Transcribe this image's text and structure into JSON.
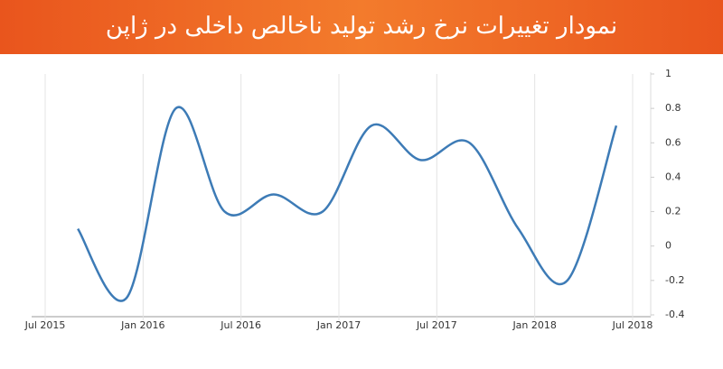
{
  "chart_data": {
    "type": "line",
    "title": "نمودار تغییرات نرخ رشد تولید ناخالص داخلی در ژاپن",
    "x": [
      "2015-09",
      "2015-12",
      "2016-03",
      "2016-06",
      "2016-09",
      "2016-12",
      "2017-03",
      "2017-06",
      "2017-09",
      "2017-12",
      "2018-03",
      "2018-06"
    ],
    "values": [
      0.1,
      -0.3,
      0.8,
      0.2,
      0.3,
      0.2,
      0.7,
      0.5,
      0.6,
      0.1,
      -0.2,
      0.7
    ],
    "color": "#3d7bb6",
    "xlim": [
      "2015-07",
      "2018-07"
    ],
    "xticks": [
      {
        "value": "2015-07",
        "label": "Jul 2015"
      },
      {
        "value": "2016-01",
        "label": "Jan 2016"
      },
      {
        "value": "2016-07",
        "label": "Jul 2016"
      },
      {
        "value": "2017-01",
        "label": "Jan 2017"
      },
      {
        "value": "2017-07",
        "label": "Jul 2017"
      },
      {
        "value": "2018-01",
        "label": "Jan 2018"
      },
      {
        "value": "2018-07",
        "label": "Jul 2018"
      }
    ],
    "ylim": [
      -0.4,
      1
    ],
    "yticks": [
      -0.4,
      -0.2,
      0,
      0.2,
      0.4,
      0.6,
      0.8,
      1
    ],
    "grid": true
  }
}
